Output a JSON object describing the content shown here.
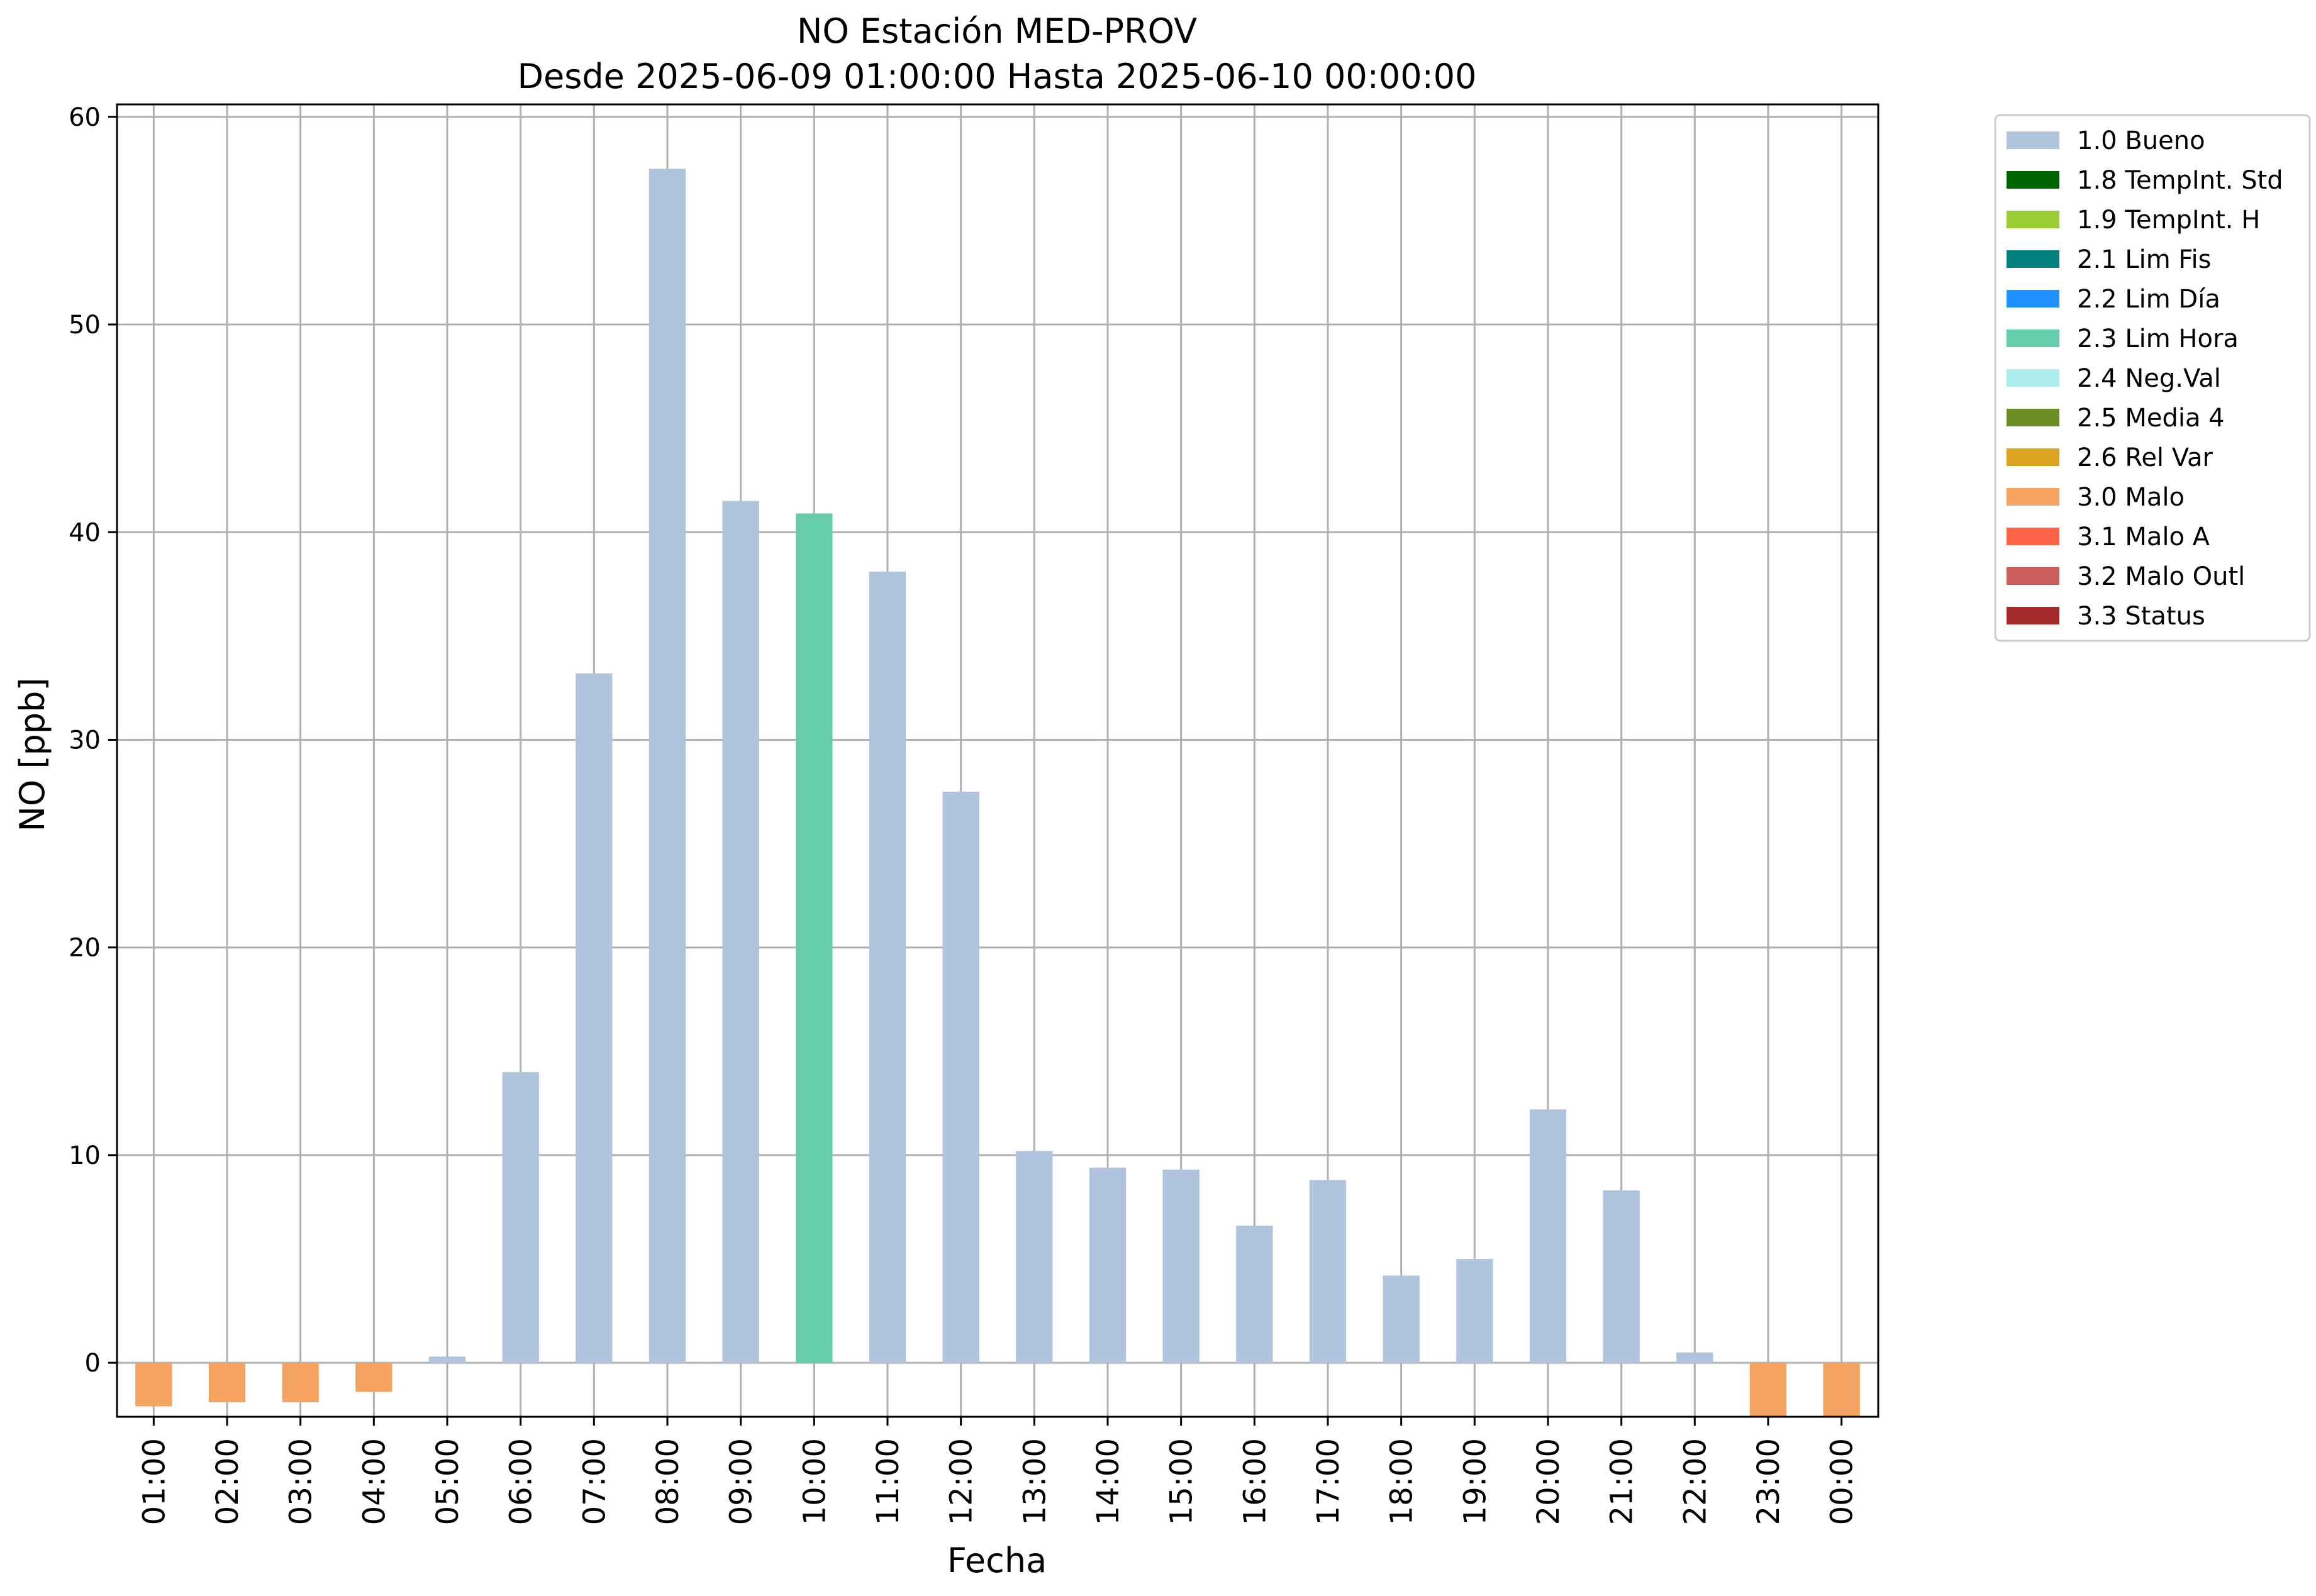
{
  "chart_data": {
    "type": "bar",
    "title": "NO Estación MED-PROV",
    "subtitle": "Desde 2025-06-09 01:00:00 Hasta 2025-06-10 00:00:00",
    "xlabel": "Fecha",
    "ylabel": "NO [ppb]",
    "ylim": [
      -2.6,
      60.6
    ],
    "yticks": [
      0,
      10,
      20,
      30,
      40,
      50,
      60
    ],
    "grid": true,
    "legend_position": "outside-top-right",
    "categories": [
      "01:00",
      "02:00",
      "03:00",
      "04:00",
      "05:00",
      "06:00",
      "07:00",
      "08:00",
      "09:00",
      "10:00",
      "11:00",
      "12:00",
      "13:00",
      "14:00",
      "15:00",
      "16:00",
      "17:00",
      "18:00",
      "19:00",
      "20:00",
      "21:00",
      "22:00",
      "23:00",
      "00:00"
    ],
    "values": [
      -2.1,
      -1.9,
      -1.9,
      -1.4,
      0.3,
      14.0,
      33.2,
      57.5,
      41.5,
      40.9,
      38.1,
      27.5,
      10.2,
      9.4,
      9.3,
      6.6,
      8.8,
      4.2,
      5.0,
      12.2,
      8.3,
      0.5,
      -2.6,
      -2.6
    ],
    "flags": [
      "3.0 Malo",
      "3.0 Malo",
      "3.0 Malo",
      "3.0 Malo",
      "1.0 Bueno",
      "1.0 Bueno",
      "1.0 Bueno",
      "1.0 Bueno",
      "1.0 Bueno",
      "2.3 Lim Hora",
      "1.0 Bueno",
      "1.0 Bueno",
      "1.0 Bueno",
      "1.0 Bueno",
      "1.0 Bueno",
      "1.0 Bueno",
      "1.0 Bueno",
      "1.0 Bueno",
      "1.0 Bueno",
      "1.0 Bueno",
      "1.0 Bueno",
      "1.0 Bueno",
      "3.0 Malo",
      "3.0 Malo"
    ],
    "legend": [
      {
        "label": "1.0 Bueno",
        "color": "#b0c4de"
      },
      {
        "label": "1.8 TempInt. Std",
        "color": "#006400"
      },
      {
        "label": "1.9 TempInt. H",
        "color": "#9acd32"
      },
      {
        "label": "2.1 Lim Fis",
        "color": "#008080"
      },
      {
        "label": "2.2 Lim Día",
        "color": "#1e90ff"
      },
      {
        "label": "2.3 Lim Hora",
        "color": "#66cdaa"
      },
      {
        "label": "2.4 Neg.Val",
        "color": "#afeeee"
      },
      {
        "label": "2.5 Media 4",
        "color": "#6b8e23"
      },
      {
        "label": "2.6 Rel Var",
        "color": "#daa520"
      },
      {
        "label": "3.0 Malo",
        "color": "#f4a460"
      },
      {
        "label": "3.1 Malo A",
        "color": "#ff6347"
      },
      {
        "label": "3.2 Malo Outl",
        "color": "#cd5c5c"
      },
      {
        "label": "3.3 Status",
        "color": "#a52a2a"
      }
    ],
    "grid_color": "#b0b0b0"
  }
}
